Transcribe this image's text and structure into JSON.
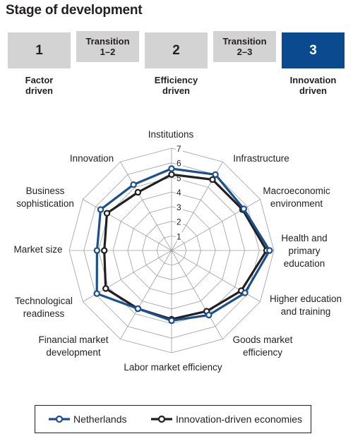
{
  "page_title": "Stage of development",
  "stages": [
    {
      "label": "1",
      "kind": "stage",
      "caption": "Factor\ndriven",
      "active": false
    },
    {
      "label": "Transition\n1–2",
      "kind": "transition",
      "caption": "",
      "active": false
    },
    {
      "label": "2",
      "kind": "stage",
      "caption": "Efficiency\ndriven",
      "active": false
    },
    {
      "label": "Transition\n2–3",
      "kind": "transition",
      "caption": "",
      "active": false
    },
    {
      "label": "3",
      "kind": "stage",
      "caption": "Innovation\ndriven",
      "active": true
    }
  ],
  "colors": {
    "inactive_box": "#d3d3d3",
    "active_box": "#0b4a8f",
    "netherlands": "#1c4f8c",
    "innovation_economies": "#231f20",
    "grid": "#9d9fa2"
  },
  "chart_data": {
    "type": "radar",
    "title": "",
    "scale": {
      "min": 1,
      "max": 7,
      "ticks": [
        "1",
        "2",
        "3",
        "4",
        "5",
        "6",
        "7"
      ]
    },
    "categories": [
      "Institutions",
      "Infrastructure",
      "Macroeconomic\nenvironment",
      "Health and\nprimary\neducation",
      "Higher education\nand training",
      "Goods market\nefficiency",
      "Labor market efficiency",
      "Financial market\ndevelopment",
      "Technological\nreadiness",
      "Market size",
      "Business\nsophistication",
      "Innovation"
    ],
    "series": [
      {
        "name": "Netherlands",
        "values": [
          5.6,
          6.0,
          5.7,
          6.7,
          5.8,
          5.1,
          4.8,
          4.6,
          5.9,
          5.1,
          5.6,
          5.2
        ]
      },
      {
        "name": "Innovation-driven economies",
        "values": [
          5.2,
          5.6,
          5.6,
          6.5,
          5.5,
          4.8,
          4.7,
          4.6,
          5.2,
          4.6,
          5.1,
          4.6
        ]
      }
    ],
    "legend_position": "bottom",
    "grid": true
  }
}
